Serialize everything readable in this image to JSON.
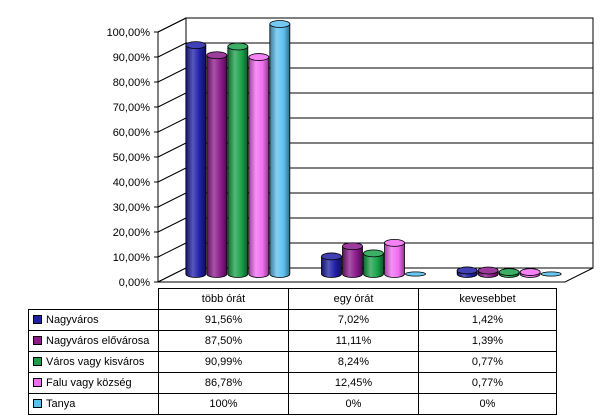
{
  "chart_data": {
    "type": "bar",
    "categories": [
      "több órát",
      "egy órát",
      "kevesebbet"
    ],
    "ylim": [
      0,
      100
    ],
    "yticks": [
      "0,00%",
      "10,00%",
      "20,00%",
      "30,00%",
      "40,00%",
      "50,00%",
      "60,00%",
      "70,00%",
      "80,00%",
      "90,00%",
      "100,00%"
    ],
    "grid": true,
    "series": [
      {
        "name": "Nagyváros",
        "color": "#1f1fa8",
        "values": [
          91.56,
          7.02,
          1.42
        ],
        "labels": [
          "91,56%",
          "7,02%",
          "1,42%"
        ]
      },
      {
        "name": "Nagyváros elővárosa",
        "color": "#8b1a8b",
        "values": [
          87.5,
          11.11,
          1.39
        ],
        "labels": [
          "87,50%",
          "11,11%",
          "1,39%"
        ]
      },
      {
        "name": "Város vagy kisváros",
        "color": "#1aa04a",
        "values": [
          90.99,
          8.24,
          0.77
        ],
        "labels": [
          "90,99%",
          "8,24%",
          "0,77%"
        ]
      },
      {
        "name": "Falu vagy község",
        "color": "#f26cf2",
        "values": [
          86.78,
          12.45,
          0.77
        ],
        "labels": [
          "86,78%",
          "12,45%",
          "0,77%"
        ]
      },
      {
        "name": "Tanya",
        "color": "#5cc0f0",
        "values": [
          100,
          0,
          0
        ],
        "labels": [
          "100%",
          "0%",
          "0%"
        ]
      }
    ]
  }
}
